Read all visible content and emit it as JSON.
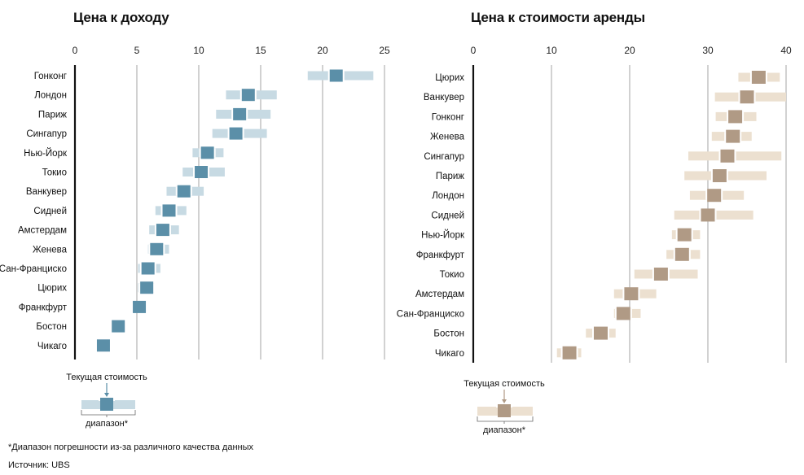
{
  "chart_data": [
    {
      "type": "range",
      "title": "Цена к доходу",
      "xticks": [
        0,
        5,
        10,
        15,
        20,
        25
      ],
      "xlim": [
        0,
        25
      ],
      "range_color": "#c7dae3",
      "value_color": "#5b8fa8",
      "rows": [
        {
          "label": "Гонконг",
          "value": 21.1,
          "low": 18.8,
          "high": 24.1
        },
        {
          "label": "Лондон",
          "value": 14.0,
          "low": 12.2,
          "high": 16.3
        },
        {
          "label": "Париж",
          "value": 13.3,
          "low": 11.4,
          "high": 15.8
        },
        {
          "label": "Сингапур",
          "value": 13.0,
          "low": 11.1,
          "high": 15.5
        },
        {
          "label": "Нью-Йорк",
          "value": 10.7,
          "low": 9.5,
          "high": 12.0
        },
        {
          "label": "Токио",
          "value": 10.2,
          "low": 8.7,
          "high": 12.1
        },
        {
          "label": "Ванкувер",
          "value": 8.8,
          "low": 7.4,
          "high": 10.4
        },
        {
          "label": "Сидней",
          "value": 7.6,
          "low": 6.5,
          "high": 9.0
        },
        {
          "label": "Амстердам",
          "value": 7.1,
          "low": 6.0,
          "high": 8.4
        },
        {
          "label": "Женева",
          "value": 6.6,
          "low": 5.9,
          "high": 7.6
        },
        {
          "label": "Сан-Франциско",
          "value": 5.9,
          "low": 5.1,
          "high": 6.9
        },
        {
          "label": "Цюрих",
          "value": 5.8,
          "low": 5.1,
          "high": 6.4
        },
        {
          "label": "Франкфурт",
          "value": 5.2,
          "low": 4.6,
          "high": 5.8
        },
        {
          "label": "Бостон",
          "value": 3.5,
          "low": 3.0,
          "high": 4.0
        },
        {
          "label": "Чикаго",
          "value": 2.3,
          "low": 1.8,
          "high": 2.8
        }
      ],
      "legend": {
        "label": "Текущая стоимость",
        "range_label": "диапазон*"
      }
    },
    {
      "type": "range",
      "title": "Цена к стоимости аренды",
      "xticks": [
        0,
        10,
        20,
        30,
        40
      ],
      "xlim": [
        0,
        40
      ],
      "range_color": "#ece0d0",
      "value_color": "#b09a85",
      "rows": [
        {
          "label": "Цюрих",
          "value": 36.5,
          "low": 33.9,
          "high": 39.2
        },
        {
          "label": "Ванкувер",
          "value": 35.0,
          "low": 30.9,
          "high": 40.0
        },
        {
          "label": "Гонконг",
          "value": 33.5,
          "low": 31.0,
          "high": 36.2
        },
        {
          "label": "Женева",
          "value": 33.2,
          "low": 30.5,
          "high": 35.6
        },
        {
          "label": "Сингапур",
          "value": 32.5,
          "low": 27.5,
          "high": 39.4
        },
        {
          "label": "Париж",
          "value": 31.5,
          "low": 27.0,
          "high": 37.5
        },
        {
          "label": "Лондон",
          "value": 30.8,
          "low": 27.7,
          "high": 34.6
        },
        {
          "label": "Сидней",
          "value": 30.0,
          "low": 25.7,
          "high": 35.8
        },
        {
          "label": "Нью-Йорк",
          "value": 27.0,
          "low": 25.4,
          "high": 29.0
        },
        {
          "label": "Франкфурт",
          "value": 26.7,
          "low": 24.7,
          "high": 29.0
        },
        {
          "label": "Токио",
          "value": 24.0,
          "low": 20.6,
          "high": 28.7
        },
        {
          "label": "Амстердам",
          "value": 20.2,
          "low": 18.0,
          "high": 23.4
        },
        {
          "label": "Сан-Франциско",
          "value": 19.2,
          "low": 18.0,
          "high": 21.4
        },
        {
          "label": "Бостон",
          "value": 16.3,
          "low": 14.4,
          "high": 18.2
        },
        {
          "label": "Чикаго",
          "value": 12.3,
          "low": 10.7,
          "high": 13.8
        }
      ],
      "legend": {
        "label": "Текущая стоимость",
        "range_label": "диапазон*"
      }
    }
  ],
  "footnote": "*Диапазон погрешности из-за различного качества данных",
  "source": "Источник: UBS"
}
